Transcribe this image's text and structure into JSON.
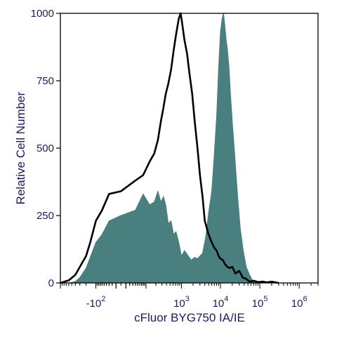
{
  "chart_data": {
    "type": "area",
    "xlabel": "cFluor BYG750 IA/IE",
    "ylabel": "Relative Cell Number",
    "x_scale": "biexponential",
    "ylim": [
      0,
      1000
    ],
    "y_ticks": [
      0,
      250,
      500,
      750,
      1000
    ],
    "x_tick_labels": [
      {
        "x": -100,
        "base": "-10",
        "exp": "2"
      },
      {
        "x": 1000,
        "base": "10",
        "exp": "3"
      },
      {
        "x": 10000,
        "base": "10",
        "exp": "4"
      },
      {
        "x": 100000,
        "base": "10",
        "exp": "5"
      },
      {
        "x": 1000000,
        "base": "10",
        "exp": "6"
      }
    ],
    "series": [
      {
        "style": "filled",
        "color": "#4a7f7f",
        "x": [
          -1000,
          -600,
          -400,
          -300,
          -200,
          -150,
          -100,
          -60,
          -30,
          0,
          40,
          80,
          130,
          180,
          230,
          280,
          330,
          380,
          450,
          530,
          620,
          720,
          850,
          1000,
          1200,
          1500,
          1800,
          2200,
          2600,
          3000,
          3500,
          4200,
          5000,
          6000,
          7000,
          8000,
          9000,
          10000,
          11000,
          12000,
          13000,
          14000,
          15000,
          16500,
          18000,
          20000,
          23000,
          27000,
          32000,
          38000,
          45000,
          55000,
          65000,
          80000
        ],
        "y": [
          0,
          0,
          5,
          20,
          55,
          95,
          150,
          180,
          230,
          250,
          270,
          330,
          290,
          300,
          340,
          300,
          320,
          290,
          220,
          230,
          180,
          190,
          150,
          100,
          120,
          100,
          85,
          95,
          90,
          100,
          110,
          170,
          260,
          340,
          480,
          620,
          800,
          930,
          980,
          1000,
          950,
          900,
          870,
          800,
          700,
          600,
          480,
          330,
          200,
          120,
          60,
          30,
          10,
          0
        ]
      },
      {
        "style": "line",
        "color": "#000000",
        "x": [
          -1000,
          -600,
          -400,
          -300,
          -200,
          -150,
          -100,
          -60,
          -30,
          0,
          40,
          80,
          130,
          180,
          230,
          280,
          330,
          380,
          450,
          530,
          620,
          720,
          850,
          950,
          1050,
          1200,
          1400,
          1600,
          1900,
          2200,
          2600,
          3000,
          3500,
          4000,
          5000,
          6000,
          7000,
          8000,
          9000,
          10000,
          11500,
          13000,
          15000,
          17000,
          20000,
          24000,
          30000,
          37000,
          45000,
          55000,
          70000,
          90000,
          120000,
          150000,
          200000,
          300000
        ],
        "y": [
          0,
          10,
          30,
          60,
          100,
          150,
          230,
          270,
          330,
          340,
          380,
          400,
          450,
          480,
          530,
          600,
          650,
          700,
          740,
          790,
          860,
          920,
          980,
          1000,
          960,
          900,
          850,
          780,
          700,
          600,
          500,
          400,
          320,
          230,
          180,
          150,
          130,
          120,
          100,
          90,
          85,
          70,
          60,
          55,
          60,
          35,
          45,
          20,
          15,
          5,
          8,
          3,
          5,
          2,
          5,
          0
        ]
      }
    ]
  }
}
